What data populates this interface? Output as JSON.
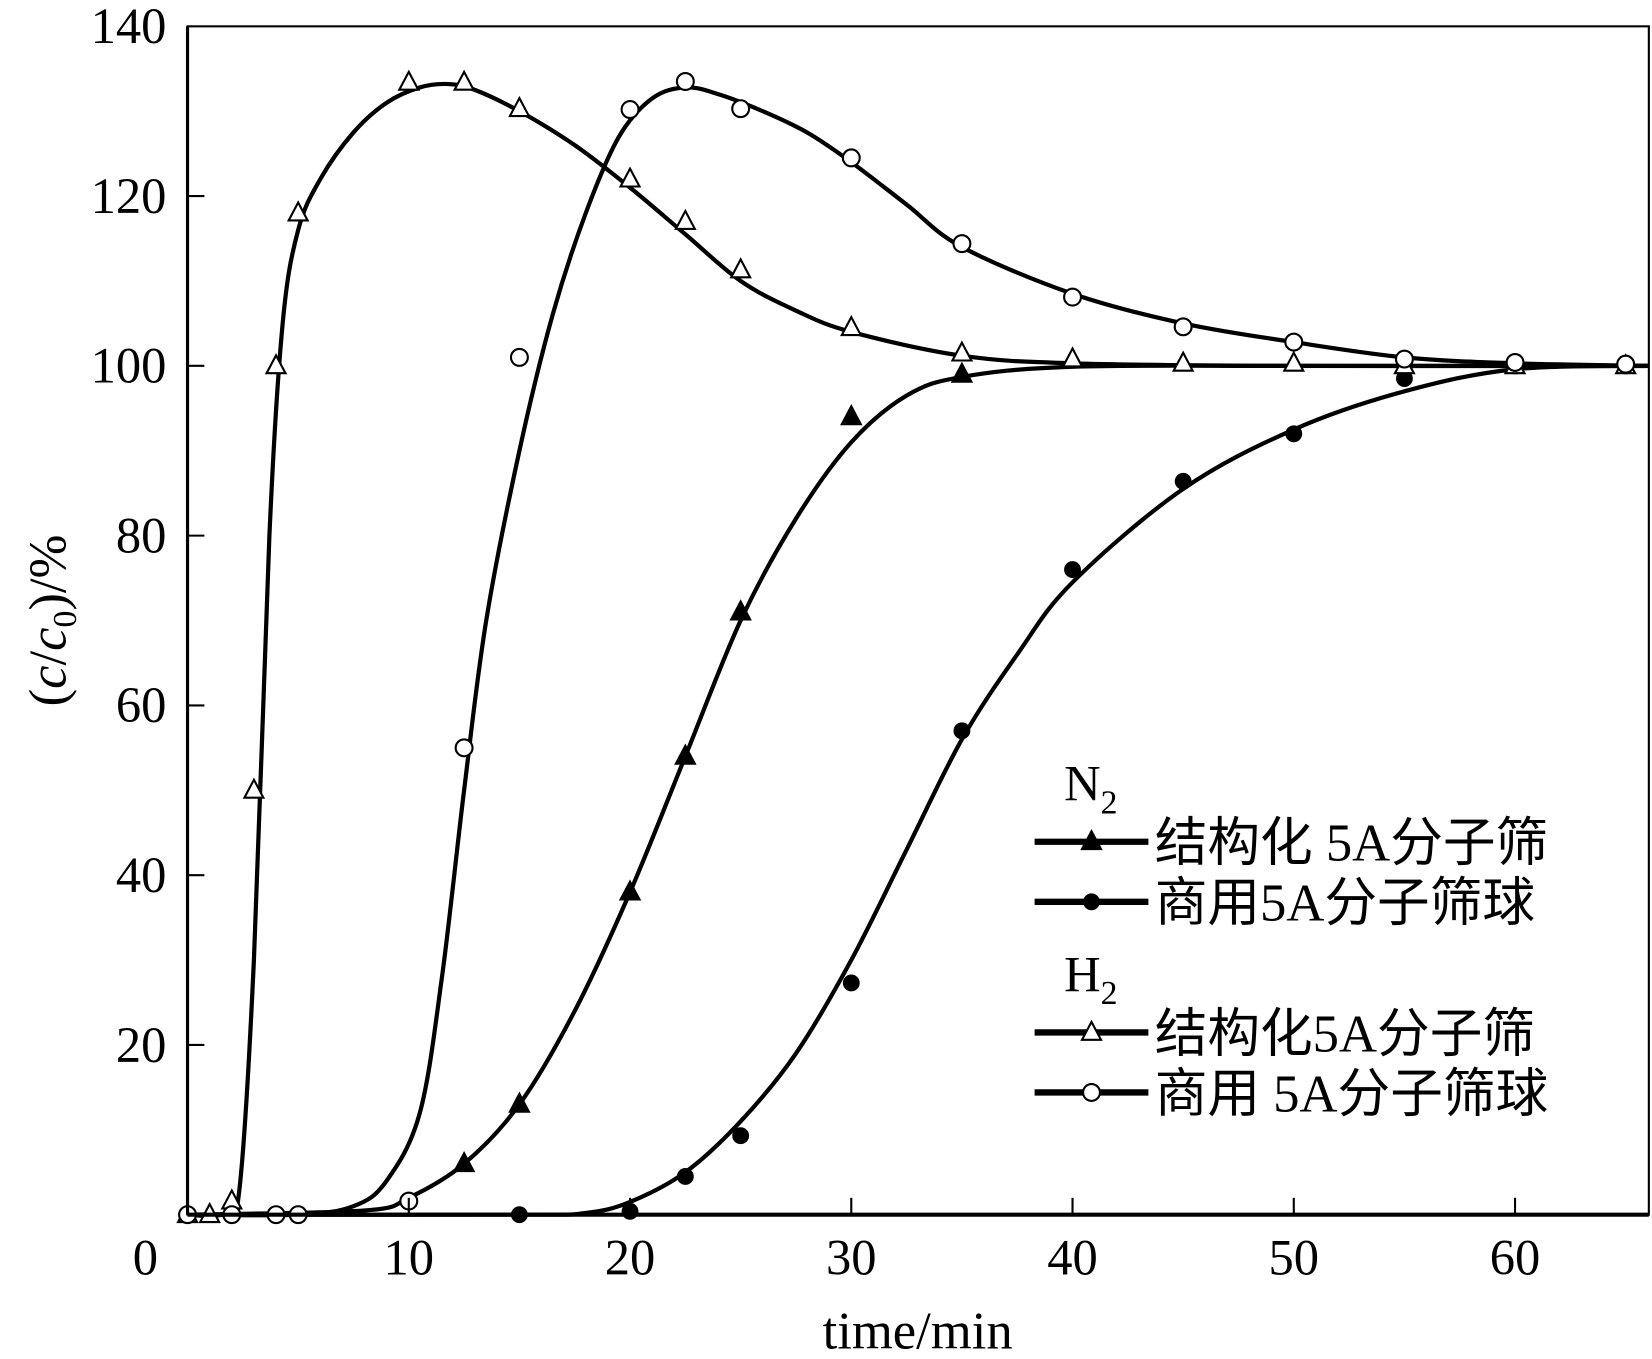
{
  "chart_data": {
    "type": "line",
    "xlabel": "time/min",
    "ylabel": {
      "open": "(",
      "c1": "c",
      "slash": "/",
      "c2": "c",
      "sub": "0",
      "close": ")/%"
    },
    "xlim": [
      0,
      66
    ],
    "ylim": [
      0,
      140
    ],
    "xticks": [
      0,
      10,
      20,
      30,
      40,
      50,
      60
    ],
    "yticks": [
      0,
      20,
      40,
      60,
      80,
      100,
      120,
      140
    ],
    "grid": false,
    "legend_position": "bottom-right",
    "legend_groups": [
      {
        "title": "N",
        "sub": "2",
        "series": [
          0,
          1
        ]
      },
      {
        "title": "H",
        "sub": "2",
        "series": [
          2,
          3
        ]
      }
    ],
    "series": [
      {
        "name": "结构化 5A分子筛",
        "marker": "triangle-filled",
        "x": [
          12.5,
          15,
          20,
          22.5,
          25,
          30,
          35
        ],
        "y": [
          6,
          13,
          38,
          54,
          71,
          94,
          99
        ],
        "curve_x": [
          0,
          8,
          10,
          12.5,
          15,
          17.5,
          20,
          22.5,
          25,
          27.5,
          30,
          32.5,
          35,
          40,
          50,
          66
        ],
        "curve_y": [
          0,
          0.5,
          2,
          6,
          13,
          24,
          38,
          54,
          70,
          82,
          91,
          96.5,
          98.7,
          99.9,
          100,
          100
        ]
      },
      {
        "name": "商用5A分子筛球",
        "marker": "circle-filled",
        "x": [
          15,
          20,
          22.5,
          25,
          30,
          35,
          40,
          45,
          50,
          55,
          60,
          65
        ],
        "y": [
          0,
          0.4,
          4.5,
          9.3,
          27.3,
          57,
          76,
          86.4,
          92,
          98.5,
          100,
          100
        ],
        "curve_x": [
          0,
          15,
          18,
          20,
          22.5,
          25,
          27.5,
          30,
          32.5,
          35,
          37.5,
          40,
          45,
          50,
          55,
          60,
          66
        ],
        "curve_y": [
          0,
          0,
          0.2,
          1.5,
          5,
          11,
          19,
          30,
          43,
          56,
          66,
          74.5,
          85.5,
          92.5,
          97,
          99.6,
          100
        ]
      },
      {
        "name": "结构化5A分子筛",
        "marker": "triangle-open",
        "x": [
          0,
          1,
          2,
          3,
          4,
          5,
          10,
          12.5,
          15,
          20,
          22.5,
          25,
          30,
          35,
          40,
          45,
          50,
          55,
          60,
          65
        ],
        "y": [
          0,
          0,
          1.6,
          50,
          100,
          118,
          133.4,
          133.4,
          130.3,
          122,
          117,
          111.3,
          104.5,
          101.5,
          100.8,
          100.3,
          100.3,
          100,
          100,
          100
        ],
        "curve_x": [
          0,
          1.5,
          2.3,
          3,
          3.7,
          4.3,
          5,
          6,
          7.5,
          9,
          10.5,
          11.8,
          13,
          15,
          17.5,
          20,
          22.5,
          25,
          27.5,
          30,
          35,
          40,
          50,
          66
        ],
        "curve_y": [
          0,
          0,
          2,
          30,
          80,
          105,
          116,
          122,
          127.5,
          131,
          132.8,
          133.2,
          132.5,
          130,
          126,
          121,
          115.5,
          110,
          106.5,
          104,
          101.2,
          100.3,
          100,
          100
        ]
      },
      {
        "name": "商用 5A分子筛球",
        "marker": "circle-open",
        "x": [
          0,
          2,
          4,
          5,
          10,
          12.5,
          15,
          20,
          22.5,
          25,
          30,
          35,
          40,
          45,
          50,
          55,
          60,
          65
        ],
        "y": [
          0,
          0,
          0,
          0,
          1.6,
          55,
          101,
          130.2,
          133.5,
          130.3,
          124.5,
          114.4,
          108.1,
          104.6,
          102.8,
          100.8,
          100.4,
          100.2
        ],
        "curve_x": [
          0,
          5,
          7.5,
          9,
          10.5,
          11.5,
          12.5,
          13.5,
          15,
          16.5,
          18,
          19.5,
          21,
          22.5,
          24,
          26,
          28,
          30,
          32.5,
          35,
          40,
          45,
          50,
          55,
          60,
          66
        ],
        "curve_y": [
          0,
          0,
          1,
          4,
          12,
          28,
          50,
          70,
          90,
          106,
          118,
          127,
          131.5,
          132.8,
          132,
          130,
          127.5,
          124,
          119,
          114,
          108.5,
          105,
          102.8,
          101,
          100.3,
          100
        ]
      }
    ]
  }
}
